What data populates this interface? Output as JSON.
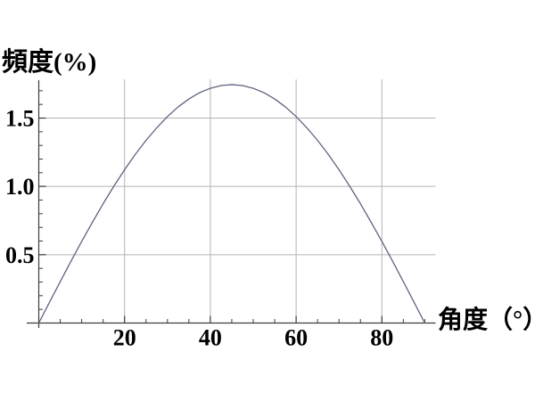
{
  "page": {
    "background": "#ffffff"
  },
  "chart_data": {
    "type": "line",
    "title": "",
    "xlabel": "角度（°）",
    "ylabel": "頻度(%)",
    "xlim": [
      0,
      92.5
    ],
    "ylim": [
      0,
      1.78
    ],
    "xticks": [
      "20",
      "40",
      "60",
      "80"
    ],
    "yticks": [
      "0.5",
      "1.0",
      "1.5"
    ],
    "xtick_minor_step": 5,
    "ytick_minor_step": 0.1,
    "grid": true,
    "legend": false,
    "series": [
      {
        "name": "frequency-density-sin2theta",
        "x": [
          0,
          2.5,
          5,
          7.5,
          10,
          12.5,
          15,
          17.5,
          20,
          22.5,
          25,
          27.5,
          30,
          32.5,
          35,
          37.5,
          40,
          42.5,
          45,
          47.5,
          50,
          52.5,
          55,
          57.5,
          60,
          62.5,
          65,
          67.5,
          70,
          72.5,
          75,
          77.5,
          80,
          82.5,
          85,
          87.5,
          90
        ],
        "y": [
          0,
          0.152,
          0.303,
          0.452,
          0.597,
          0.737,
          0.873,
          1.001,
          1.122,
          1.234,
          1.337,
          1.429,
          1.511,
          1.582,
          1.64,
          1.686,
          1.718,
          1.738,
          1.745,
          1.738,
          1.718,
          1.686,
          1.64,
          1.582,
          1.511,
          1.429,
          1.337,
          1.234,
          1.122,
          1.001,
          0.873,
          0.737,
          0.597,
          0.452,
          0.303,
          0.152,
          0
        ]
      }
    ],
    "colors": {
      "curve": "#5e6380",
      "grid": "#b4b4b4",
      "axis": "#3c3c3c",
      "text": "#000000"
    }
  }
}
